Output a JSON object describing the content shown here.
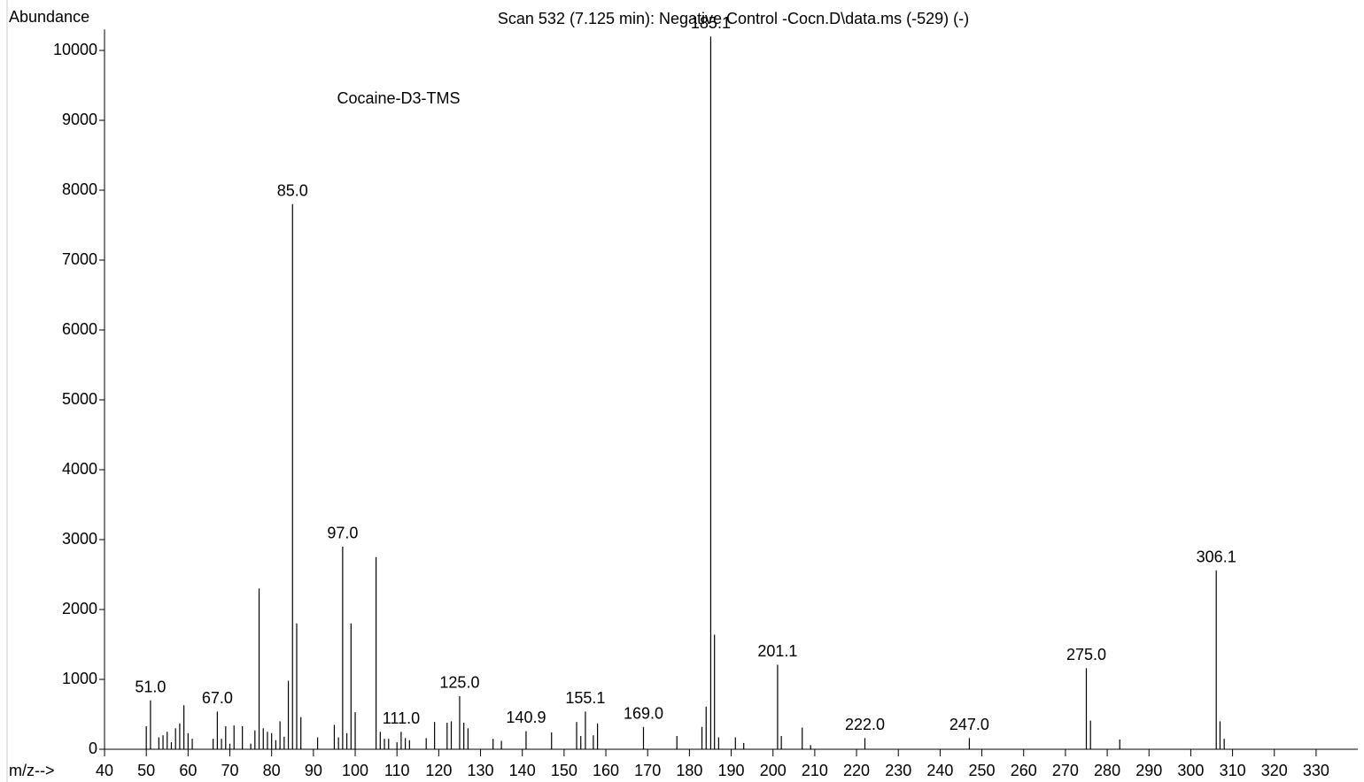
{
  "chart_data": {
    "type": "stem",
    "title": "Scan 532 (7.125 min): Negative Control -Cocn.D\\data.ms (-529) (-)",
    "y_label": "Abundance",
    "x_label": "m/z-->",
    "annotation": "Cocaine-D3-TMS",
    "color": "#000000",
    "xlim": [
      40,
      340
    ],
    "xticks": [
      40,
      50,
      60,
      70,
      80,
      90,
      100,
      110,
      120,
      130,
      140,
      150,
      160,
      170,
      180,
      190,
      200,
      210,
      220,
      230,
      240,
      250,
      260,
      270,
      280,
      290,
      300,
      310,
      320,
      330
    ],
    "ylim": [
      0,
      10300
    ],
    "yticks": [
      0,
      1000,
      2000,
      3000,
      4000,
      5000,
      6000,
      7000,
      8000,
      9000,
      10000
    ],
    "x": [
      50,
      51.0,
      53,
      54,
      55,
      56,
      57,
      58,
      59,
      60,
      61,
      66,
      67.0,
      68,
      69,
      70,
      71,
      73,
      75,
      76,
      77,
      78,
      79,
      80,
      81,
      82,
      83,
      84,
      85.0,
      86,
      87,
      91,
      95,
      96,
      97.0,
      98,
      99,
      100,
      105,
      106,
      107,
      108,
      110,
      111.0,
      112,
      113,
      117,
      119,
      122,
      123,
      125.0,
      126,
      127,
      133,
      135,
      140.9,
      147,
      153,
      154,
      155.1,
      157,
      158,
      169.0,
      177,
      183,
      184,
      185.1,
      186,
      187,
      191,
      193,
      201.1,
      202,
      207,
      209,
      222.0,
      247.0,
      275.0,
      276,
      283,
      306.1,
      307,
      308
    ],
    "values": [
      330,
      700,
      170,
      200,
      250,
      100,
      300,
      370,
      630,
      230,
      150,
      150,
      540,
      150,
      330,
      80,
      340,
      330,
      80,
      270,
      2300,
      300,
      250,
      230,
      130,
      400,
      180,
      980,
      7800,
      1800,
      460,
      170,
      350,
      170,
      2900,
      230,
      1800,
      530,
      2750,
      250,
      150,
      150,
      100,
      250,
      160,
      130,
      160,
      390,
      380,
      400,
      760,
      380,
      300,
      150,
      120,
      260,
      240,
      390,
      190,
      540,
      200,
      370,
      320,
      190,
      320,
      610,
      10200,
      1640,
      170,
      170,
      90,
      1210,
      190,
      310,
      60,
      160,
      160,
      1160,
      410,
      140,
      2560,
      400,
      150
    ],
    "labels": [
      null,
      "51.0",
      null,
      null,
      null,
      null,
      null,
      null,
      null,
      null,
      null,
      null,
      "67.0",
      null,
      null,
      null,
      null,
      null,
      null,
      null,
      null,
      null,
      null,
      null,
      null,
      null,
      null,
      null,
      "85.0",
      null,
      null,
      null,
      null,
      null,
      "97.0",
      null,
      null,
      null,
      null,
      null,
      null,
      null,
      null,
      "111.0",
      null,
      null,
      null,
      null,
      null,
      null,
      "125.0",
      null,
      null,
      null,
      null,
      "140.9",
      null,
      null,
      null,
      "155.1",
      null,
      null,
      "169.0",
      null,
      null,
      null,
      "185.1",
      null,
      null,
      null,
      null,
      "201.1",
      null,
      null,
      null,
      "222.0",
      "247.0",
      "275.0",
      null,
      null,
      "306.1",
      null,
      null
    ]
  }
}
